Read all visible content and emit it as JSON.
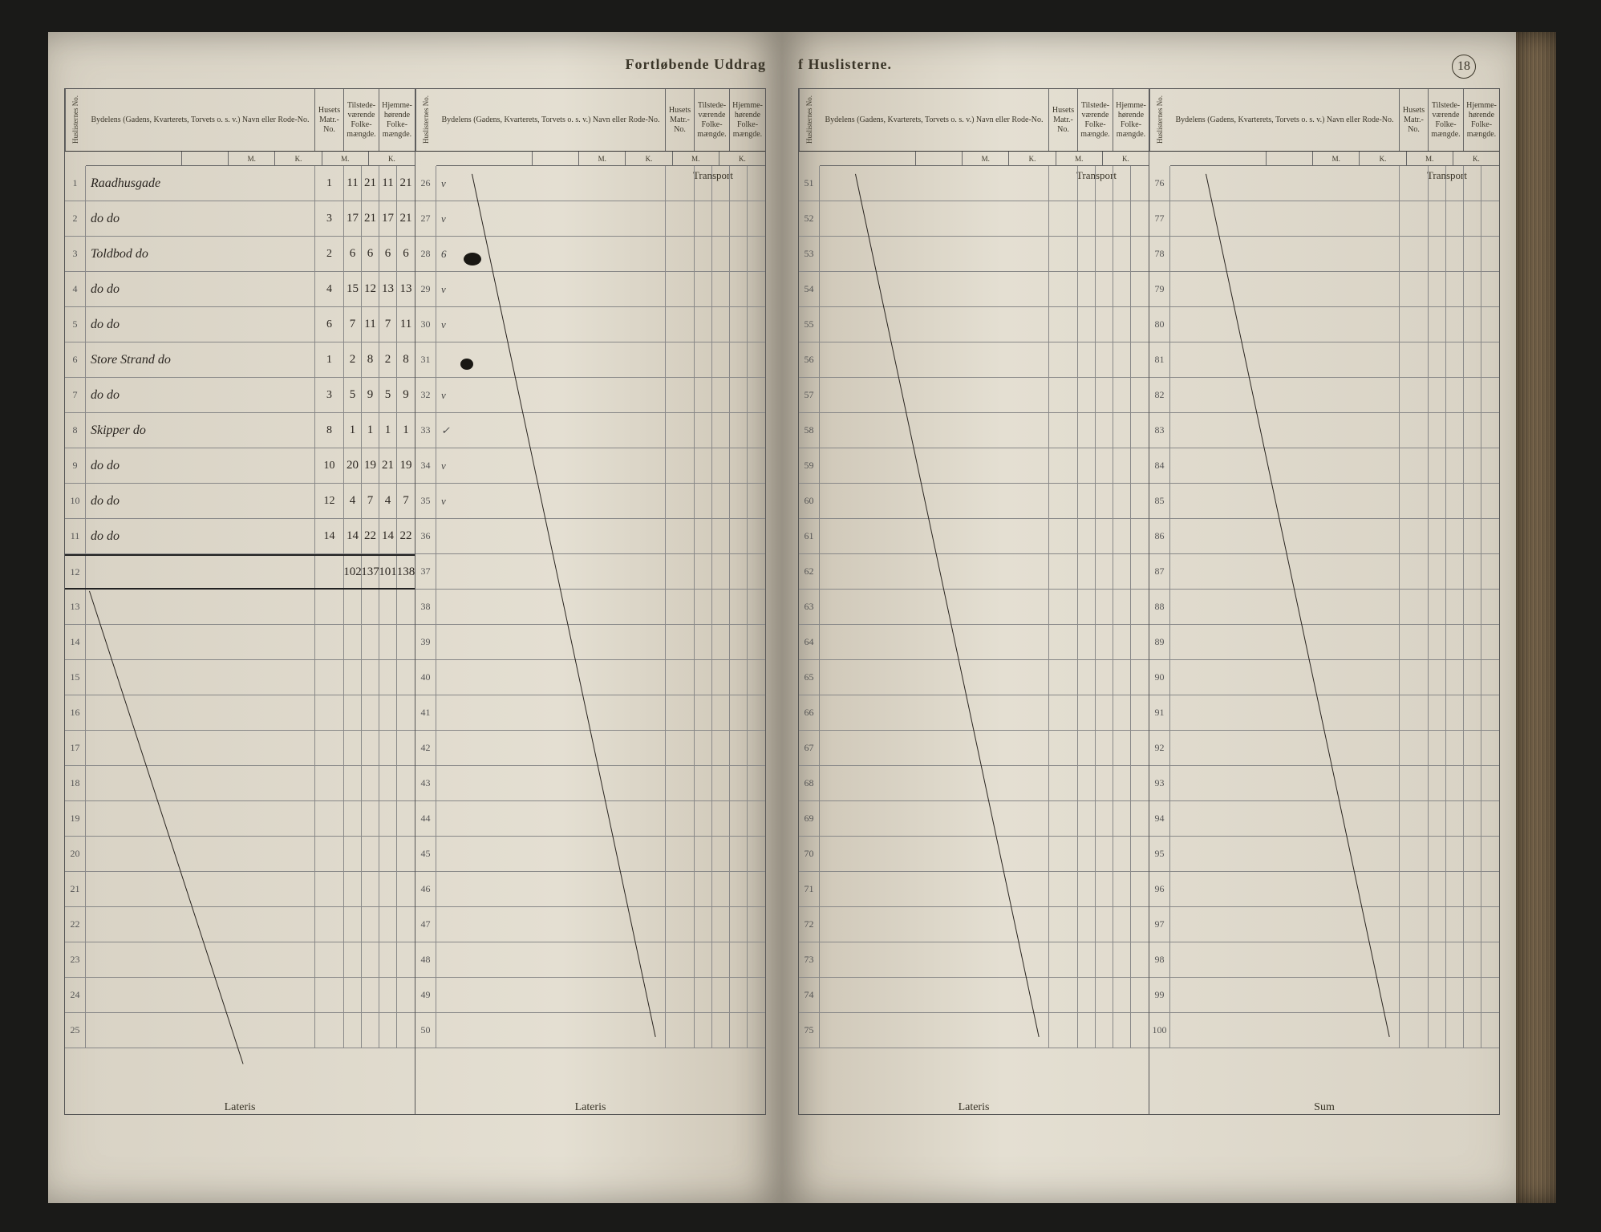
{
  "page_title_left": "Fortløbende Uddrag",
  "page_title_right": "f Huslisterne.",
  "page_number": "18",
  "headers": {
    "huslist_no": "Huslisternes No.",
    "bydelens": "Bydelens (Gadens, Kvarterets, Torvets o. s. v.) Navn eller Rode-No.",
    "husets_matr": "Husets Matr.-No.",
    "tilstede": "Tilstede-værende Folke-mængde.",
    "hjemme": "Hjemme-hørende Folke-mængde.",
    "M": "M.",
    "K": "K."
  },
  "transport_label": "Transport",
  "lateris_label": "Lateris",
  "sum_label": "Sum",
  "block1": {
    "start": 1,
    "rows": [
      {
        "no": "1",
        "name": "Raadhusgade",
        "matr": "1",
        "tm": "11",
        "tk": "21",
        "hm": "11",
        "hk": "21"
      },
      {
        "no": "2",
        "name": "do    do",
        "matr": "3",
        "tm": "17",
        "tk": "21",
        "hm": "17",
        "hk": "21"
      },
      {
        "no": "3",
        "name": "Toldbod   do",
        "matr": "2",
        "tm": "6",
        "tk": "6",
        "hm": "6",
        "hk": "6"
      },
      {
        "no": "4",
        "name": "do    do",
        "matr": "4",
        "tm": "15",
        "tk": "12",
        "hm": "13",
        "hk": "13"
      },
      {
        "no": "5",
        "name": "do    do",
        "matr": "6",
        "tm": "7",
        "tk": "11",
        "hm": "7",
        "hk": "11"
      },
      {
        "no": "6",
        "name": "Store Strand do",
        "matr": "1",
        "tm": "2",
        "tk": "8",
        "hm": "2",
        "hk": "8"
      },
      {
        "no": "7",
        "name": "do    do",
        "matr": "3",
        "tm": "5",
        "tk": "9",
        "hm": "5",
        "hk": "9"
      },
      {
        "no": "8",
        "name": "Skipper   do",
        "matr": "8",
        "tm": "1",
        "tk": "1",
        "hm": "1",
        "hk": "1"
      },
      {
        "no": "9",
        "name": "do    do",
        "matr": "10",
        "tm": "20",
        "tk": "19",
        "hm": "21",
        "hk": "19"
      },
      {
        "no": "10",
        "name": "do    do",
        "matr": "12",
        "tm": "4",
        "tk": "7",
        "hm": "4",
        "hk": "7"
      },
      {
        "no": "11",
        "name": "do    do",
        "matr": "14",
        "tm": "14",
        "tk": "22",
        "hm": "14",
        "hk": "22"
      }
    ],
    "sum": {
      "no": "12",
      "tm": "102",
      "tk": "137",
      "hm": "101",
      "hk": "138"
    },
    "blank_from": 13,
    "blank_to": 25
  },
  "block2": {
    "start": 26,
    "end": 50,
    "checks": [
      "v",
      "v",
      "6",
      "v",
      "v",
      "",
      "v",
      "✓",
      "v",
      "v",
      "",
      "",
      "",
      "",
      "",
      "",
      "",
      "",
      "",
      "",
      "",
      "",
      "",
      "",
      ""
    ]
  },
  "block3": {
    "start": 51,
    "end": 75
  },
  "block4": {
    "start": 76,
    "end": 100
  },
  "colors": {
    "paper": "#e4dfd2",
    "ink": "#2a2520",
    "rule": "#666",
    "print": "#3a3528"
  }
}
